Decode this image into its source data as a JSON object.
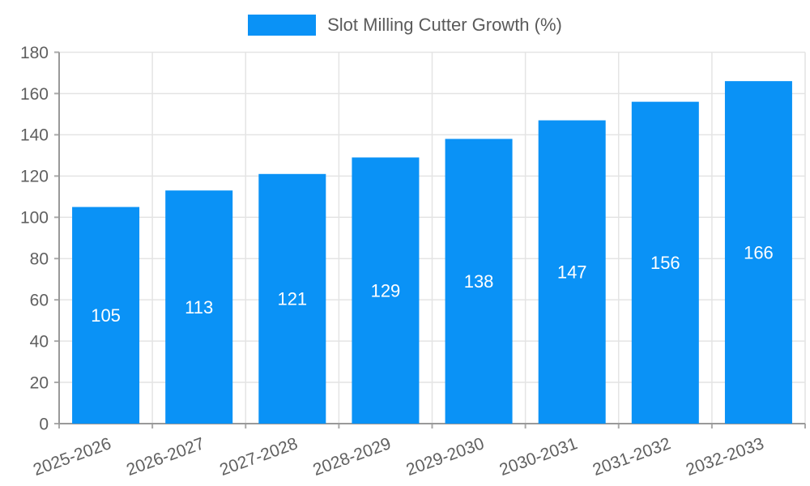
{
  "chart_data": {
    "type": "bar",
    "title": "",
    "series_name": "Slot Milling Cutter Growth (%)",
    "categories": [
      "2025-2026",
      "2026-2027",
      "2027-2028",
      "2028-2029",
      "2029-2030",
      "2030-2031",
      "2031-2032",
      "2032-2033"
    ],
    "values": [
      105,
      113,
      121,
      129,
      138,
      147,
      156,
      166
    ],
    "value_labels": [
      "105",
      "113",
      "121",
      "129",
      "138",
      "147",
      "156",
      "166"
    ],
    "ylim": [
      0,
      180
    ],
    "yticks": [
      0,
      20,
      40,
      60,
      80,
      100,
      120,
      140,
      160,
      180
    ],
    "xlabel": "",
    "ylabel": "",
    "grid": true,
    "legend_position": "top-center",
    "x_label_rotation_deg": -20,
    "colors": {
      "bar": "#0a92f6",
      "value_label": "#ffffff",
      "axis_line": "#999999",
      "tick_mark": "#aaaaaa",
      "grid_line": "#e4e4e4",
      "tick_label": "#606060",
      "legend_text": "#5a5a5a",
      "background": "#ffffff"
    }
  }
}
